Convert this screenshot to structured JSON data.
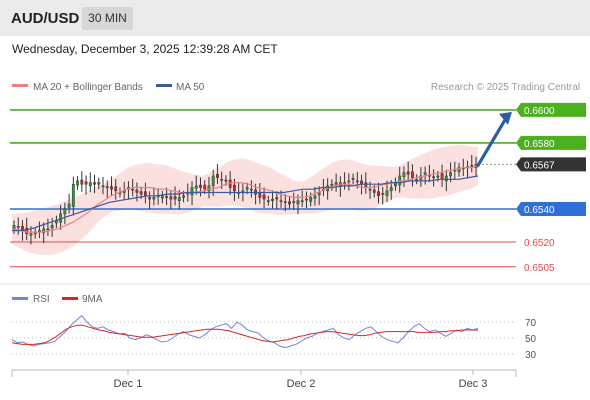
{
  "header": {
    "symbol": "AUD/USD",
    "timeframe": "30 MIN"
  },
  "timestamp": "Wednesday, December 3, 2025 12:39:28 AM CET",
  "legend": {
    "bb": "MA 20 + Bollinger Bands",
    "ma50": "MA 50",
    "credit": "Research © 2025 Trading Central"
  },
  "rsi_legend": {
    "rsi": "RSI",
    "ma": "9MA"
  },
  "colors": {
    "up": "#2ca02c",
    "down": "#d62728",
    "candle": "#333333",
    "ma50": "#3a5a9c",
    "ma20": "#f08080",
    "bb_fill": "#fbe0e0",
    "level_green": "#4caf1e",
    "level_blue": "#2f6fd6",
    "level_red": "#e34b4b",
    "arrow": "#2a5ca8",
    "rsi_line": "#6f86d6",
    "rsi_ma": "#d62728"
  },
  "chart_data": [
    {
      "type": "candlestick",
      "title": "",
      "x_ticks": [
        "Dec 1",
        "Dec 2",
        "Dec 3"
      ],
      "ylim": [
        0.6497,
        0.6606
      ],
      "price_labels": [
        {
          "value": 0.66,
          "label": "0.6600",
          "role": "resistance"
        },
        {
          "value": 0.658,
          "label": "0.6580",
          "role": "resistance"
        },
        {
          "value": 0.6567,
          "label": "0.6567",
          "role": "last_price"
        },
        {
          "value": 0.654,
          "label": "0.6540",
          "role": "pivot"
        },
        {
          "value": 0.652,
          "label": "0.6520",
          "role": "support"
        },
        {
          "value": 0.6505,
          "label": "0.6505",
          "role": "support"
        }
      ],
      "close_series": [
        0.653,
        0.6529,
        0.6527,
        0.6525,
        0.6525,
        0.6526,
        0.6527,
        0.6528,
        0.6528,
        0.653,
        0.6533,
        0.6537,
        0.654,
        0.6543,
        0.6555,
        0.6557,
        0.6555,
        0.6555,
        0.6556,
        0.6555,
        0.6555,
        0.6554,
        0.6553,
        0.6552,
        0.6551,
        0.655,
        0.6551,
        0.6553,
        0.6552,
        0.655,
        0.6549,
        0.6548,
        0.6546,
        0.6547,
        0.6548,
        0.6548,
        0.6547,
        0.6546,
        0.6546,
        0.6547,
        0.6548,
        0.655,
        0.6553,
        0.6554,
        0.6553,
        0.6552,
        0.6554,
        0.656,
        0.6559,
        0.6558,
        0.6557,
        0.6553,
        0.6551,
        0.655,
        0.6551,
        0.6553,
        0.6552,
        0.6549,
        0.6547,
        0.6546,
        0.6545,
        0.6546,
        0.6546,
        0.6545,
        0.6544,
        0.6543,
        0.6544,
        0.6545,
        0.6545,
        0.6546,
        0.6547,
        0.6548,
        0.655,
        0.6552,
        0.6554,
        0.6555,
        0.6555,
        0.6556,
        0.6556,
        0.6557,
        0.6558,
        0.6557,
        0.6555,
        0.6553,
        0.6552,
        0.655,
        0.6548,
        0.6549,
        0.6551,
        0.6553,
        0.6556,
        0.656,
        0.6562,
        0.6561,
        0.6559,
        0.6558,
        0.656,
        0.6562,
        0.656,
        0.6559,
        0.656,
        0.6558,
        0.656,
        0.6562,
        0.6564,
        0.6565,
        0.6565,
        0.6565,
        0.6566,
        0.6567
      ],
      "ma20_series": [
        0.6528,
        0.6527,
        0.6526,
        0.6526,
        0.6526,
        0.6527,
        0.6528,
        0.653,
        0.6532,
        0.6535,
        0.6538,
        0.6542,
        0.6545,
        0.6548,
        0.655,
        0.6552,
        0.6553,
        0.6553,
        0.6553,
        0.6552,
        0.6552,
        0.6551,
        0.655,
        0.655,
        0.655,
        0.6551,
        0.6552,
        0.6553,
        0.6555,
        0.6556,
        0.6556,
        0.6555,
        0.6553,
        0.6552,
        0.6551,
        0.6549,
        0.6548,
        0.6547,
        0.6547,
        0.6548,
        0.655,
        0.6552,
        0.6554,
        0.6555,
        0.6555,
        0.6554,
        0.6553,
        0.6553,
        0.6554,
        0.6555,
        0.6556,
        0.6557,
        0.6558,
        0.6559,
        0.656,
        0.6561,
        0.6562,
        0.6563,
        0.6564,
        0.6565,
        0.6565,
        0.6566
      ],
      "ma50_series": [
        0.6527,
        0.6527,
        0.6528,
        0.653,
        0.6532,
        0.6534,
        0.6536,
        0.6538,
        0.654,
        0.6542,
        0.6544,
        0.6545,
        0.6546,
        0.6547,
        0.6548,
        0.6548,
        0.6549,
        0.6549,
        0.655,
        0.655,
        0.655,
        0.655,
        0.655,
        0.655,
        0.655,
        0.655,
        0.655,
        0.655,
        0.655,
        0.6551,
        0.6552,
        0.6552,
        0.6553,
        0.6553,
        0.6554,
        0.6554,
        0.6555,
        0.6555,
        0.6555,
        0.6556,
        0.6556,
        0.6557,
        0.6557,
        0.6557,
        0.6558,
        0.6558,
        0.6558,
        0.6559,
        0.656
      ]
    },
    {
      "type": "line",
      "title": "",
      "ylim": [
        20,
        85
      ],
      "y_ticks": [
        70,
        50,
        30
      ],
      "series": [
        {
          "name": "RSI",
          "values": [
            48,
            44,
            45,
            42,
            40,
            42,
            43,
            44,
            46,
            52,
            58,
            66,
            72,
            78,
            70,
            64,
            62,
            64,
            60,
            58,
            55,
            56,
            50,
            48,
            50,
            54,
            52,
            48,
            45,
            46,
            50,
            55,
            58,
            54,
            52,
            50,
            54,
            60,
            64,
            66,
            68,
            62,
            70,
            66,
            60,
            58,
            56,
            50,
            46,
            44,
            40,
            38,
            40,
            42,
            46,
            50,
            52,
            56,
            58,
            60,
            62,
            54,
            50,
            48,
            54,
            58,
            62,
            64,
            58,
            52,
            48,
            46,
            44,
            50,
            58,
            64,
            68,
            62,
            58,
            60,
            56,
            52,
            56,
            60,
            58,
            62,
            60,
            62
          ]
        },
        {
          "name": "9MA",
          "values": [
            44,
            43,
            42,
            42,
            42,
            43,
            44,
            47,
            51,
            56,
            61,
            64,
            66,
            66,
            64,
            62,
            60,
            59,
            57,
            56,
            55,
            54,
            53,
            52,
            51,
            51,
            51,
            52,
            53,
            54,
            55,
            56,
            57,
            58,
            59,
            60,
            61,
            61,
            61,
            60,
            59,
            57,
            55,
            53,
            51,
            49,
            47,
            46,
            45,
            46,
            47,
            48,
            50,
            52,
            53,
            55,
            56,
            57,
            58,
            58,
            57,
            56,
            55,
            54,
            53,
            53,
            54,
            56,
            57,
            58,
            58,
            58,
            58,
            58,
            58,
            57,
            57,
            57,
            57,
            58,
            58,
            59,
            59,
            60,
            60,
            60,
            60
          ]
        }
      ]
    }
  ]
}
